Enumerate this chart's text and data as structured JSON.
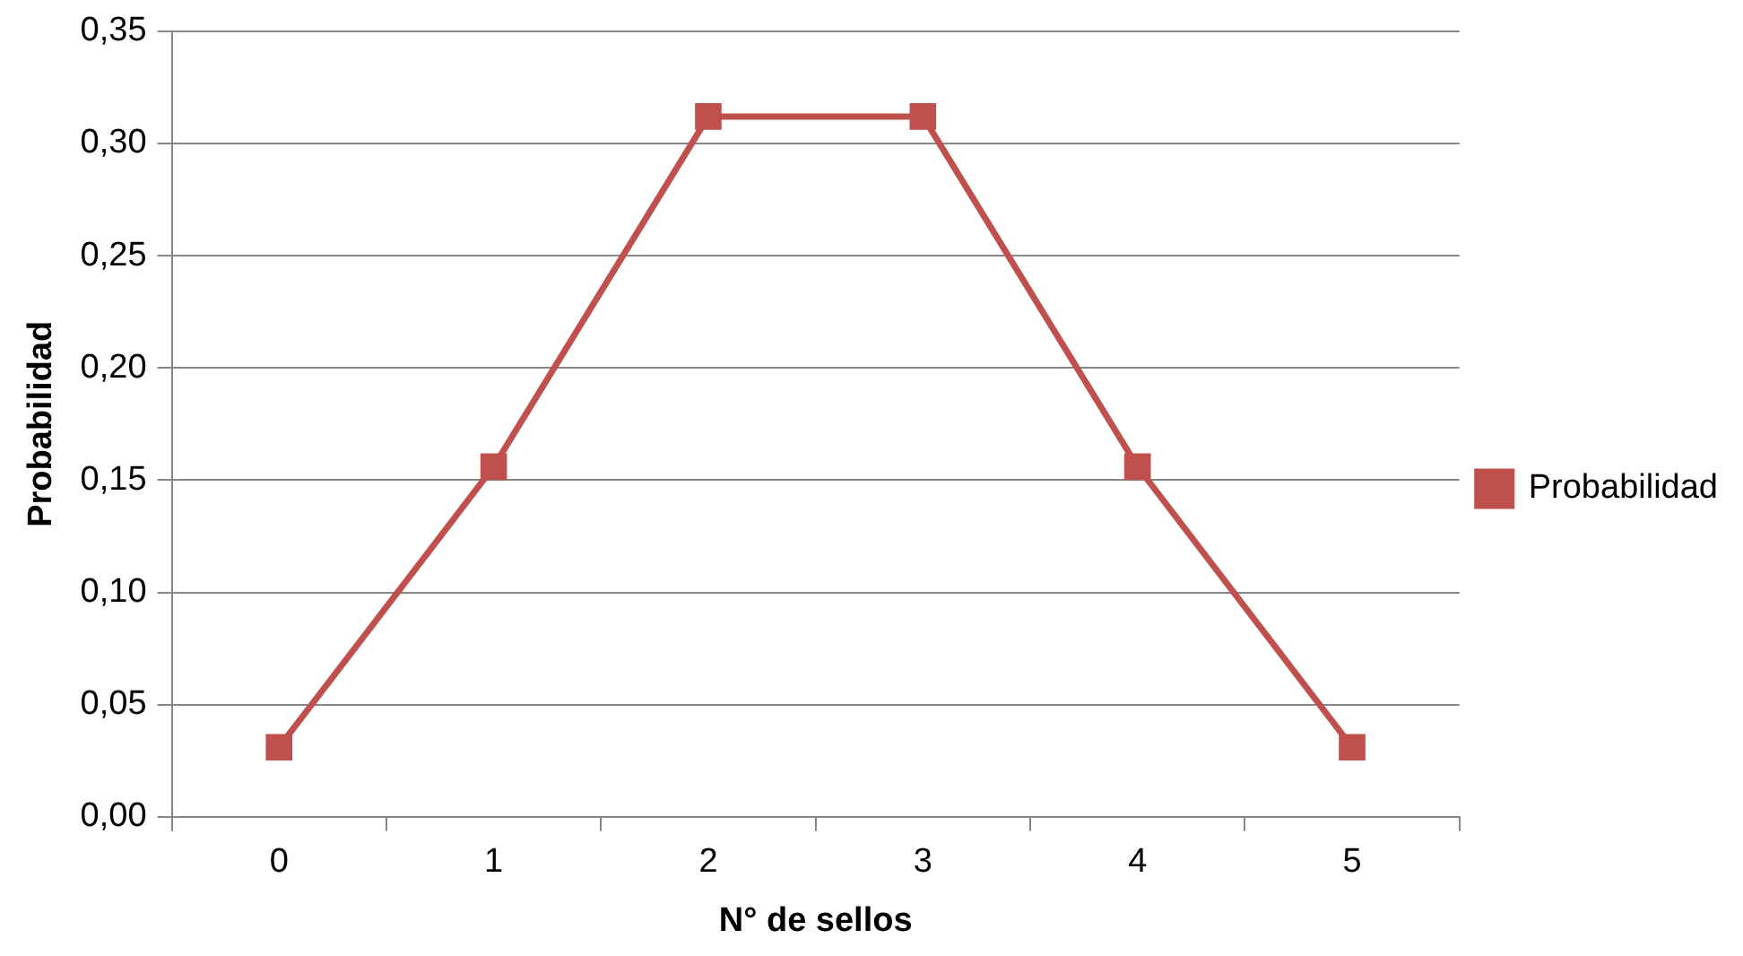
{
  "chart_data": {
    "type": "line",
    "xlabel": "N° de sellos",
    "ylabel": "Probabilidad",
    "categories": [
      "0",
      "1",
      "2",
      "3",
      "4",
      "5"
    ],
    "series": [
      {
        "name": "Probabilidad",
        "color": "#c0504d",
        "values": [
          0.031,
          0.156,
          0.312,
          0.312,
          0.156,
          0.031
        ]
      }
    ],
    "ylim": [
      0,
      0.35
    ],
    "yticks": [
      {
        "value": 0,
        "label": "0,00"
      },
      {
        "value": 0.05,
        "label": "0,05"
      },
      {
        "value": 0.1,
        "label": "0,10"
      },
      {
        "value": 0.15,
        "label": "0,15"
      },
      {
        "value": 0.2,
        "label": "0,20"
      },
      {
        "value": 0.25,
        "label": "0,25"
      },
      {
        "value": 0.3,
        "label": "0,30"
      },
      {
        "value": 0.35,
        "label": "0,35"
      }
    ],
    "grid": "y",
    "legend": "right",
    "marker": "square",
    "line_style": "solid"
  }
}
